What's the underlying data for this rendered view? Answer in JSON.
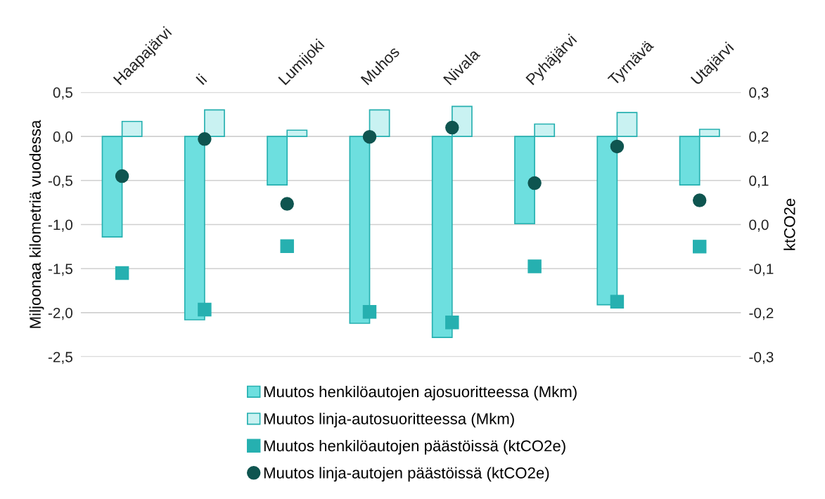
{
  "chart_data": {
    "type": "bar",
    "categories": [
      "Haapajärvi",
      "Ii",
      "Lumijoki",
      "Muhos",
      "Nivala",
      "Pyhäjärvi",
      "Tyrnävä",
      "Utajärvi"
    ],
    "ylabel": "Miljoonaa kilometriä vuodessa",
    "y2label": "ktCO2e",
    "ylim": [
      -2.5,
      0.5
    ],
    "yticks": [
      {
        "value": 0.5,
        "label": "0,5"
      },
      {
        "value": 0.0,
        "label": "0,0"
      },
      {
        "value": -0.5,
        "label": "-0,5"
      },
      {
        "value": -1.0,
        "label": "-1,0"
      },
      {
        "value": -1.5,
        "label": "-1,5"
      },
      {
        "value": -2.0,
        "label": "-2,0"
      },
      {
        "value": -2.5,
        "label": "-2,5"
      }
    ],
    "y2lim": [
      -0.3,
      0.3
    ],
    "y2ticks": [
      {
        "value": 0.3,
        "label": "0,3"
      },
      {
        "value": 0.2,
        "label": "0,2"
      },
      {
        "value": 0.1,
        "label": "0,1"
      },
      {
        "value": 0.0,
        "label": "0,0"
      },
      {
        "value": -0.1,
        "label": "-0,1"
      },
      {
        "value": -0.2,
        "label": "-0,2"
      },
      {
        "value": -0.3,
        "label": "-0,3"
      }
    ],
    "grid": "y",
    "legend": "bottom",
    "series": [
      {
        "name": "Muutos henkilöautojen ajosuoritteessa (Mkm)",
        "color": "#6ddfdf",
        "values": [
          -1.14,
          -2.08,
          -0.55,
          -2.12,
          -2.28,
          -0.99,
          -1.91,
          -0.55
        ]
      },
      {
        "name": "Muutos linja-autosuoritteessa (Mkm)",
        "color": "#c9f2f2",
        "values": [
          0.17,
          0.3,
          0.07,
          0.3,
          0.34,
          0.14,
          0.27,
          0.08
        ]
      },
      {
        "name": "Muutos henkilöautojen päästöissä (ktCO2e)",
        "type": "scatter",
        "marker": "square",
        "axis": "y2",
        "color": "#26b0b0",
        "values": [
          -0.11,
          -0.193,
          -0.049,
          -0.198,
          -0.222,
          -0.095,
          -0.175,
          -0.05
        ]
      },
      {
        "name": "Muutos linja-autojen päästöissä (ktCO2e)",
        "type": "scatter",
        "marker": "circle",
        "axis": "y2",
        "color": "#0f5550",
        "values": [
          0.11,
          0.194,
          0.047,
          0.199,
          0.22,
          0.094,
          0.177,
          0.055
        ]
      }
    ]
  }
}
